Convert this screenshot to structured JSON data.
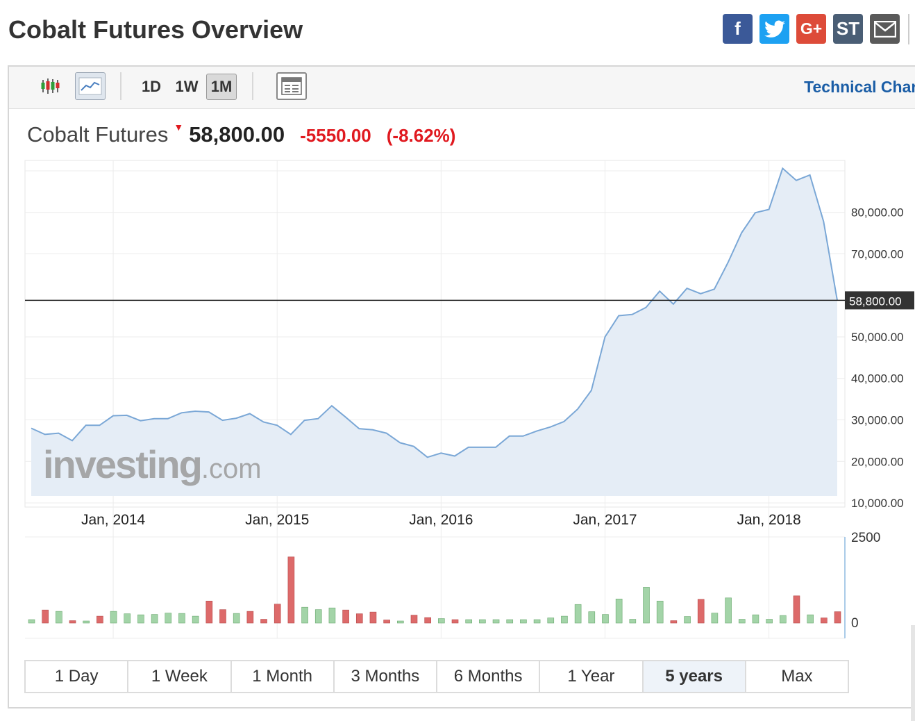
{
  "page": {
    "title": "Cobalt Futures Overview"
  },
  "share": {
    "facebook": "f",
    "googleplus": "G+",
    "stocktwits": "ST"
  },
  "toolbar": {
    "candles_icon": "candlestick-chart-icon",
    "line_icon": "line-chart-icon",
    "interval_1d": "1D",
    "interval_1w": "1W",
    "interval_1m": "1M",
    "active_interval": "1M",
    "layout_icon": "chart-layout-icon",
    "technical_link": "Technical Chart"
  },
  "quote": {
    "name": "Cobalt Futures",
    "price": "58,800.00",
    "change": "-5550.00",
    "change_pct": "(-8.62%)",
    "direction": "down"
  },
  "colors": {
    "line": "#7aa7d6",
    "area": "#e5edf6",
    "up_bar": "#a3d4a8",
    "down_bar": "#dd6a6a",
    "negative": "#e0191f",
    "link": "#1a5da6"
  },
  "watermark": {
    "brand": "investing",
    "suffix": ".com"
  },
  "chart_data": {
    "type": "area",
    "title": "Cobalt Futures",
    "x_tick_labels": [
      "Jan, 2014",
      "Jan, 2015",
      "Jan, 2016",
      "Jan, 2017",
      "Jan, 2018"
    ],
    "y_tick_labels": [
      "80,000.00",
      "70,000.00",
      "50,000.00",
      "40,000.00",
      "30,000.00",
      "20,000.00",
      "10,000.00"
    ],
    "y_ticks": [
      80000,
      70000,
      50000,
      40000,
      30000,
      20000,
      10000
    ],
    "ylim": [
      9000,
      92500
    ],
    "last_price_label": "58,800.00",
    "last_price": 58800,
    "grid": true,
    "x_start": "2013-07",
    "series": [
      {
        "values": [
          28000,
          26500,
          26800,
          25000,
          28700,
          28700,
          31000,
          31100,
          29800,
          30300,
          30300,
          31700,
          32100,
          31900,
          29900,
          30400,
          31500,
          29500,
          28700,
          26500,
          29900,
          30300,
          33400,
          30700,
          27900,
          27600,
          26800,
          24500,
          23600,
          21000,
          22000,
          21300,
          23400,
          23400,
          23400,
          26100,
          26100,
          27300,
          28300,
          29600,
          32600,
          37100,
          50000,
          55100,
          55400,
          57100,
          61000,
          57900,
          61700,
          60400,
          61500,
          67900,
          75100,
          79900,
          80700,
          90600,
          87700,
          89000,
          77800,
          58800
        ]
      }
    ],
    "volume": {
      "ylim": [
        0,
        2500
      ],
      "y_tick_labels": [
        "2500",
        "0"
      ],
      "values": [
        100,
        380,
        340,
        70,
        60,
        200,
        340,
        270,
        240,
        250,
        290,
        280,
        200,
        640,
        390,
        280,
        340,
        110,
        550,
        1920,
        460,
        390,
        440,
        380,
        270,
        320,
        90,
        60,
        230,
        160,
        130,
        100,
        100,
        100,
        100,
        100,
        100,
        100,
        150,
        200,
        540,
        330,
        250,
        700,
        110,
        1040,
        640,
        70,
        190,
        690,
        290,
        730,
        110,
        240,
        110,
        220,
        790,
        240,
        150,
        330
      ],
      "direction": [
        "u",
        "d",
        "u",
        "d",
        "u",
        "d",
        "u",
        "u",
        "u",
        "u",
        "u",
        "u",
        "u",
        "d",
        "d",
        "u",
        "d",
        "d",
        "d",
        "d",
        "u",
        "u",
        "u",
        "d",
        "d",
        "d",
        "d",
        "u",
        "d",
        "d",
        "u",
        "d",
        "u",
        "u",
        "u",
        "u",
        "u",
        "u",
        "u",
        "u",
        "u",
        "u",
        "u",
        "u",
        "u",
        "u",
        "u",
        "d",
        "u",
        "d",
        "u",
        "u",
        "u",
        "u",
        "u",
        "u",
        "d",
        "u",
        "d",
        "d"
      ]
    }
  },
  "ranges": {
    "items": [
      "1 Day",
      "1 Week",
      "1 Month",
      "3 Months",
      "6 Months",
      "1 Year",
      "5 years",
      "Max"
    ],
    "active": "5 years"
  }
}
